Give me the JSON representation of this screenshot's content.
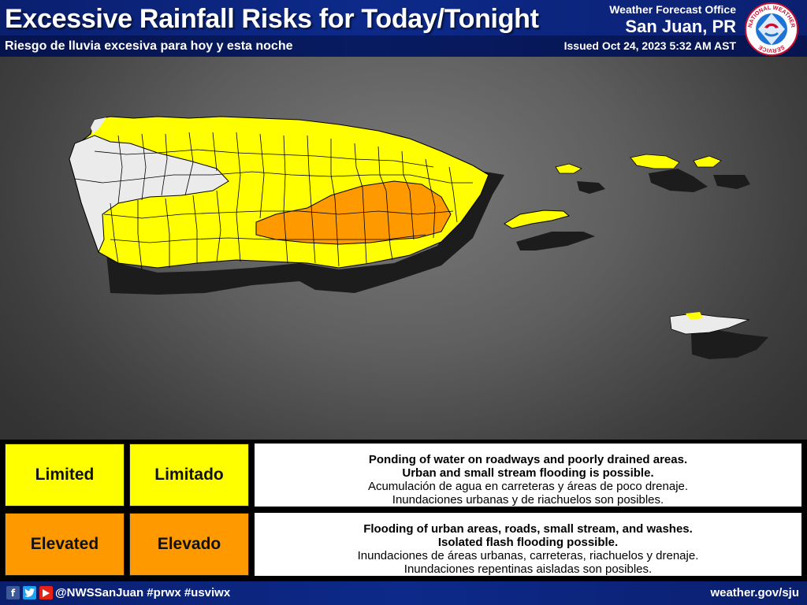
{
  "header": {
    "title": "Excessive Rainfall Risks for Today/Tonight",
    "subtitle": "Riesgo de lluvia excesiva para hoy y esta noche",
    "office_label": "Weather Forecast Office",
    "office_name": "San Juan, PR",
    "issued": "Issued Oct 24, 2023 5:32 AM AST",
    "logo_text": "NATIONAL WEATHER SERVICE"
  },
  "colors": {
    "header_bg": "#0d2a8a",
    "limited": "#ffff00",
    "elevated": "#ff9900",
    "none": "#ebebeb",
    "shadow": "#1c1c1c"
  },
  "map": {
    "regions": [
      "Puerto Rico",
      "Vieques",
      "Culebra",
      "St. Thomas",
      "St. John",
      "St. Croix"
    ]
  },
  "legend": {
    "rows": [
      {
        "level_en": "Limited",
        "level_es": "Limitado",
        "color": "#ffff00",
        "desc_en_1": "Ponding of water on roadways and poorly drained areas.",
        "desc_en_2": "Urban and small stream flooding is possible.",
        "desc_es_1": "Acumulación de agua en carreteras y áreas de poco drenaje.",
        "desc_es_2": "Inundaciones urbanas y de riachuelos son posibles."
      },
      {
        "level_en": "Elevated",
        "level_es": "Elevado",
        "color": "#ff9900",
        "desc_en_1": "Flooding of urban areas, roads, small stream, and washes.",
        "desc_en_2": "Isolated flash flooding possible.",
        "desc_es_1": "Inundaciones de áreas urbanas, carreteras, riachuelos y drenaje.",
        "desc_es_2": "Inundaciones repentinas aisladas son posibles."
      }
    ]
  },
  "footer": {
    "social_icons": [
      "facebook-icon",
      "twitter-icon",
      "youtube-icon"
    ],
    "handle": "@NWSSanJuan #prwx #usviwx",
    "website": "weather.gov/sju"
  }
}
